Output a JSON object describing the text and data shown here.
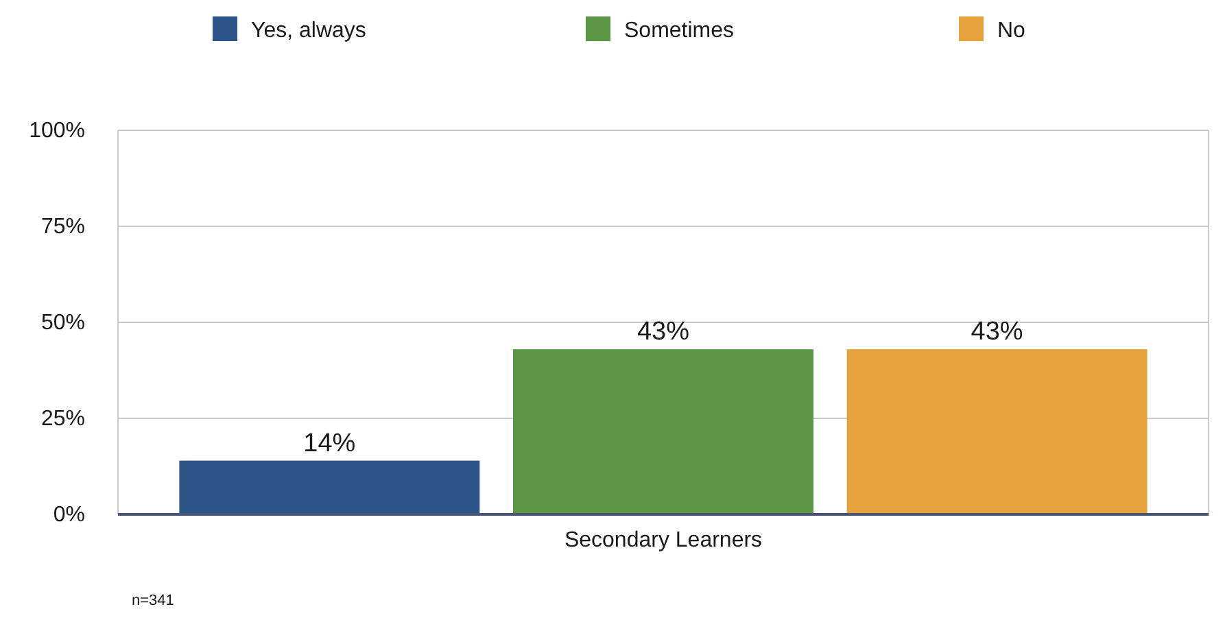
{
  "chart_data": {
    "type": "bar",
    "categories": [
      "Secondary Learners"
    ],
    "series": [
      {
        "name": "Yes, always",
        "color": "#2e5588",
        "values": [
          14
        ],
        "value_labels": [
          "14%"
        ]
      },
      {
        "name": "Sometimes",
        "color": "#5a9646",
        "values": [
          43
        ],
        "value_labels": [
          "43%"
        ]
      },
      {
        "name": "No",
        "color": "#e5a23d",
        "values": [
          43
        ],
        "value_labels": [
          "43%"
        ]
      }
    ],
    "ylim": [
      0,
      100
    ],
    "yticks": [
      {
        "value": 0,
        "label": "0%"
      },
      {
        "value": 25,
        "label": "25%"
      },
      {
        "value": 50,
        "label": "50%"
      },
      {
        "value": 75,
        "label": "75%"
      },
      {
        "value": 100,
        "label": "100%"
      }
    ],
    "grid": "y",
    "legend": "top",
    "annotations": [
      "n=341"
    ]
  }
}
